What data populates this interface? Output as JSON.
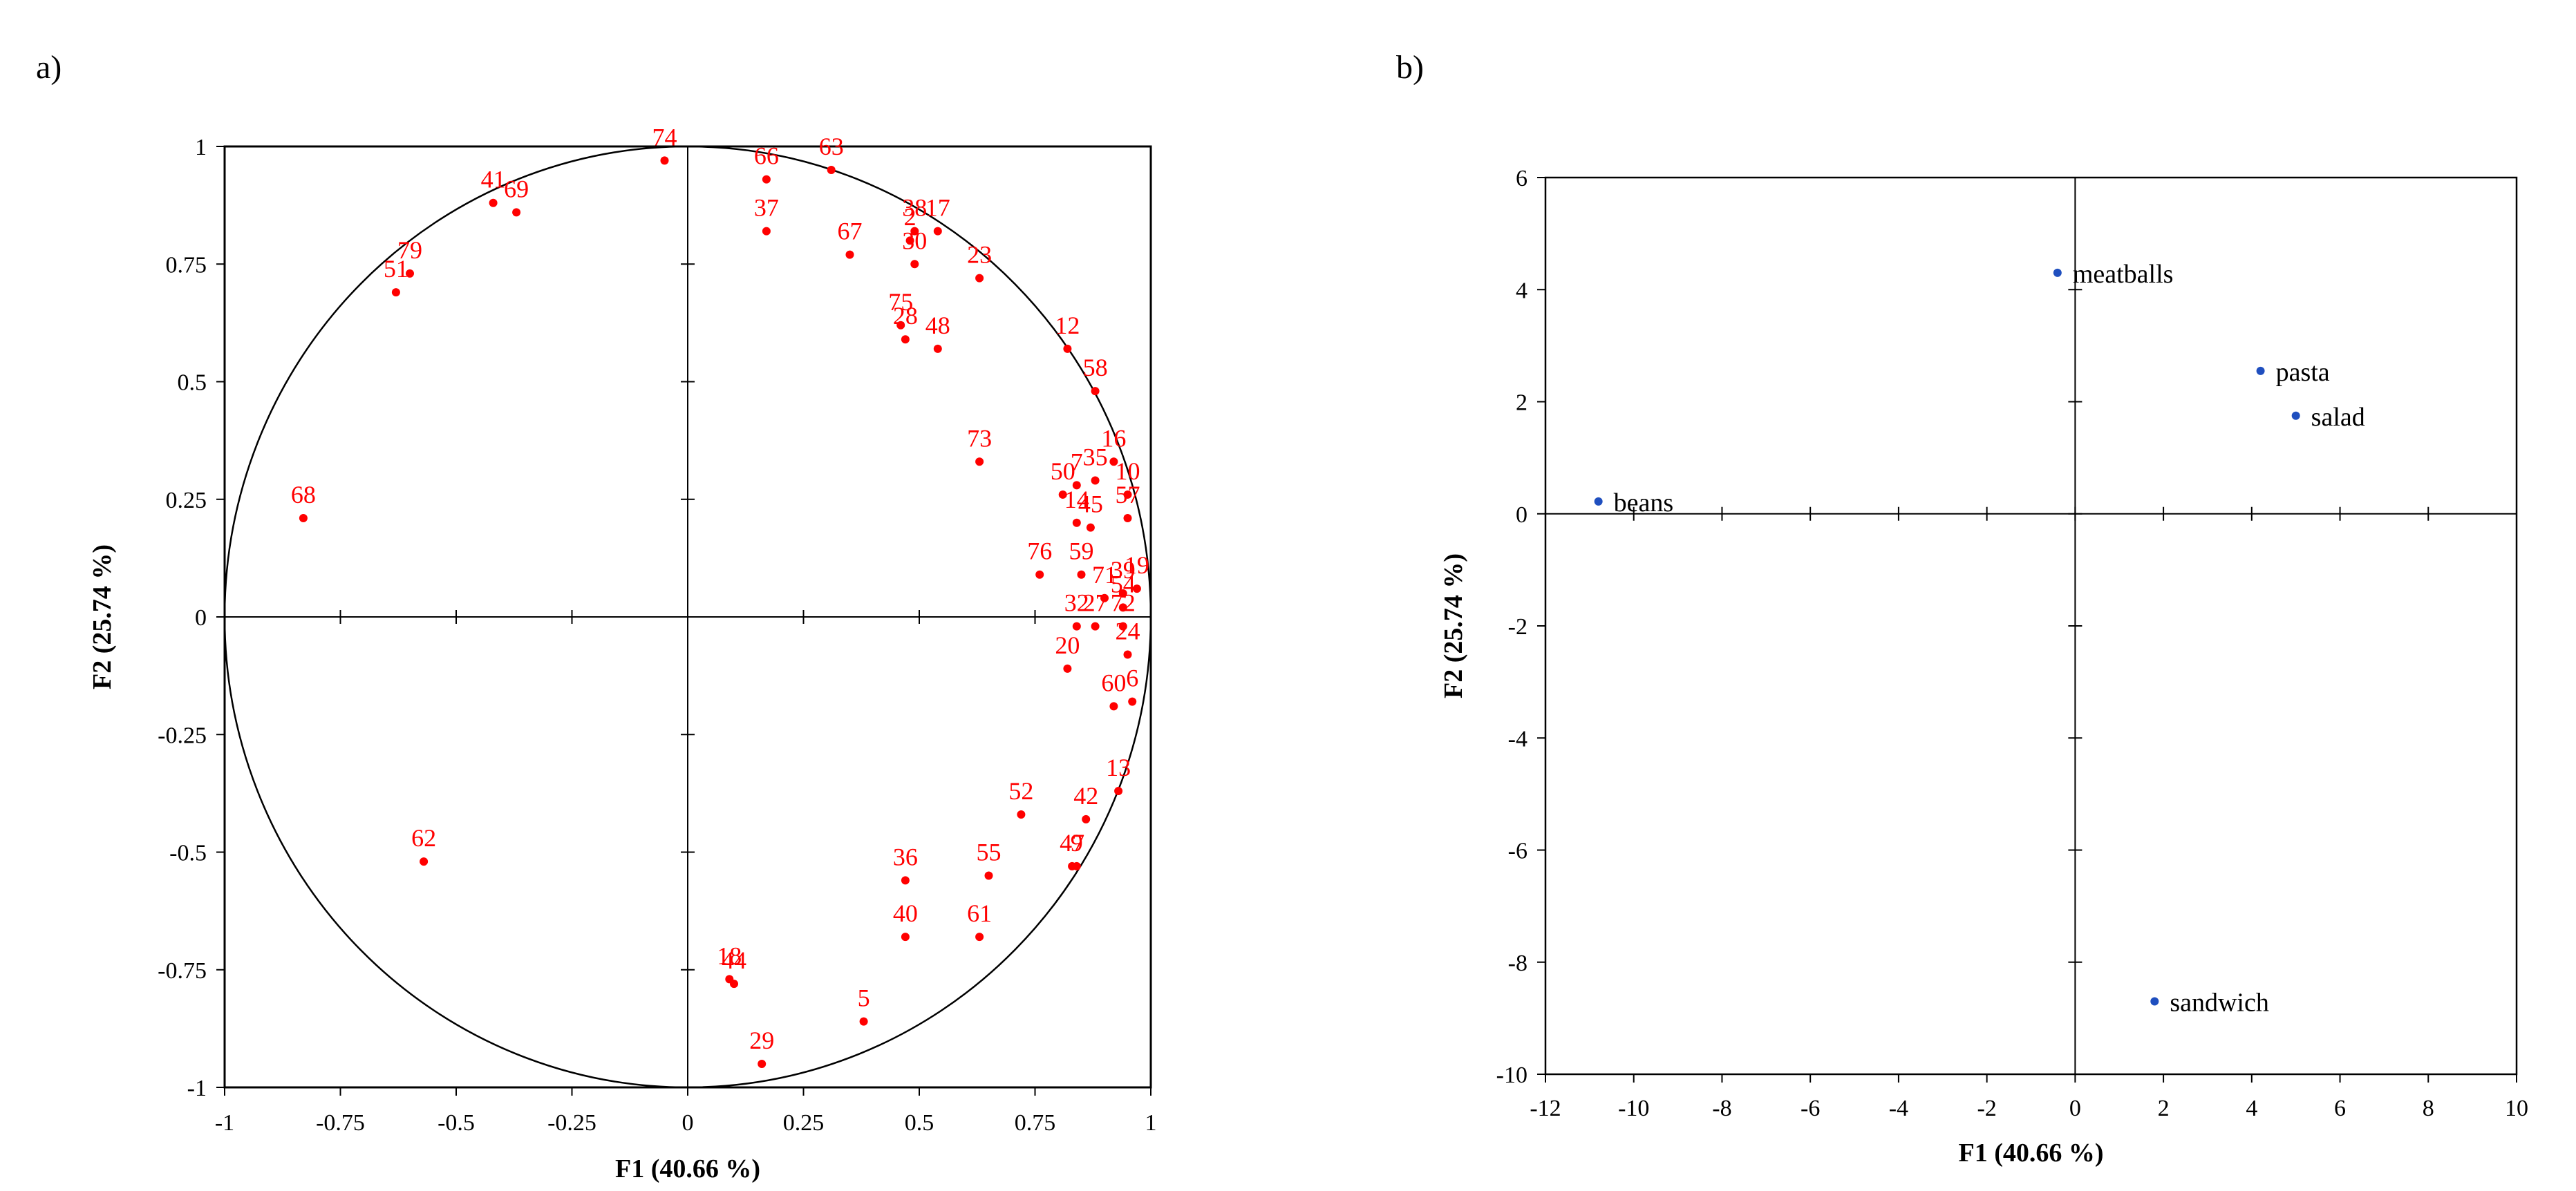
{
  "panel_labels": {
    "a": "a)",
    "b": "b)"
  },
  "chart_data": [
    {
      "type": "scatter",
      "title": "",
      "xlabel": "F1 (40.66 %)",
      "ylabel": "F2 (25.74 %)",
      "xlim": [
        -1,
        1
      ],
      "ylim": [
        -1,
        1
      ],
      "x_ticks": [
        -1,
        -0.75,
        -0.5,
        -0.25,
        0,
        0.25,
        0.5,
        0.75,
        1
      ],
      "x_tick_labels": [
        "-1",
        "-0.75",
        "-0.5",
        "-0.25",
        "0",
        "0.25",
        "0.5",
        "0.75",
        "1"
      ],
      "y_ticks": [
        -1,
        -0.75,
        -0.5,
        -0.25,
        0,
        0.25,
        0.5,
        0.75,
        1
      ],
      "y_tick_labels": [
        "-1",
        "-0.75",
        "-0.5",
        "-0.25",
        "0",
        "0.25",
        "0.5",
        "0.75",
        "1"
      ],
      "circle": true,
      "grid": false,
      "point_color": "#ff0000",
      "points": [
        {
          "label": "74",
          "x": -0.05,
          "y": 0.97
        },
        {
          "label": "66",
          "x": 0.17,
          "y": 0.93
        },
        {
          "label": "63",
          "x": 0.31,
          "y": 0.95
        },
        {
          "label": "41",
          "x": -0.42,
          "y": 0.88
        },
        {
          "label": "69",
          "x": -0.37,
          "y": 0.86
        },
        {
          "label": "37",
          "x": 0.17,
          "y": 0.82
        },
        {
          "label": "38",
          "x": 0.49,
          "y": 0.82
        },
        {
          "label": "17",
          "x": 0.54,
          "y": 0.82
        },
        {
          "label": "2",
          "x": 0.48,
          "y": 0.8
        },
        {
          "label": "30",
          "x": 0.49,
          "y": 0.75
        },
        {
          "label": "79",
          "x": -0.6,
          "y": 0.73
        },
        {
          "label": "67",
          "x": 0.35,
          "y": 0.77
        },
        {
          "label": "23",
          "x": 0.63,
          "y": 0.72
        },
        {
          "label": "51",
          "x": -0.63,
          "y": 0.69
        },
        {
          "label": "75",
          "x": 0.46,
          "y": 0.62
        },
        {
          "label": "28",
          "x": 0.47,
          "y": 0.59
        },
        {
          "label": "48",
          "x": 0.54,
          "y": 0.57
        },
        {
          "label": "12",
          "x": 0.82,
          "y": 0.57
        },
        {
          "label": "58",
          "x": 0.88,
          "y": 0.48
        },
        {
          "label": "73",
          "x": 0.63,
          "y": 0.33
        },
        {
          "label": "68",
          "x": -0.83,
          "y": 0.21
        },
        {
          "label": "50",
          "x": 0.81,
          "y": 0.26
        },
        {
          "label": "7",
          "x": 0.84,
          "y": 0.28
        },
        {
          "label": "35",
          "x": 0.88,
          "y": 0.29
        },
        {
          "label": "16",
          "x": 0.92,
          "y": 0.33
        },
        {
          "label": "10",
          "x": 0.95,
          "y": 0.26
        },
        {
          "label": "14",
          "x": 0.84,
          "y": 0.2
        },
        {
          "label": "45",
          "x": 0.87,
          "y": 0.19
        },
        {
          "label": "57",
          "x": 0.95,
          "y": 0.21
        },
        {
          "label": "59",
          "x": 0.85,
          "y": 0.09
        },
        {
          "label": "76",
          "x": 0.76,
          "y": 0.09
        },
        {
          "label": "39",
          "x": 0.94,
          "y": 0.05
        },
        {
          "label": "71",
          "x": 0.9,
          "y": 0.04
        },
        {
          "label": "19",
          "x": 0.97,
          "y": 0.06
        },
        {
          "label": "54",
          "x": 0.94,
          "y": 0.02
        },
        {
          "label": "32",
          "x": 0.84,
          "y": -0.02
        },
        {
          "label": "27",
          "x": 0.88,
          "y": -0.02
        },
        {
          "label": "72",
          "x": 0.94,
          "y": -0.02
        },
        {
          "label": "20",
          "x": 0.82,
          "y": -0.11
        },
        {
          "label": "24",
          "x": 0.95,
          "y": -0.08
        },
        {
          "label": "60",
          "x": 0.92,
          "y": -0.19
        },
        {
          "label": "6",
          "x": 0.96,
          "y": -0.18
        },
        {
          "label": "13",
          "x": 0.93,
          "y": -0.37
        },
        {
          "label": "42",
          "x": 0.86,
          "y": -0.43
        },
        {
          "label": "52",
          "x": 0.72,
          "y": -0.42
        },
        {
          "label": "9",
          "x": 0.84,
          "y": -0.53
        },
        {
          "label": "47",
          "x": 0.83,
          "y": -0.53
        },
        {
          "label": "36",
          "x": 0.47,
          "y": -0.56
        },
        {
          "label": "55",
          "x": 0.65,
          "y": -0.55
        },
        {
          "label": "62",
          "x": -0.57,
          "y": -0.52
        },
        {
          "label": "40",
          "x": 0.47,
          "y": -0.68
        },
        {
          "label": "61",
          "x": 0.63,
          "y": -0.68
        },
        {
          "label": "18",
          "x": 0.09,
          "y": -0.77
        },
        {
          "label": "44",
          "x": 0.1,
          "y": -0.78
        },
        {
          "label": "5",
          "x": 0.38,
          "y": -0.86
        },
        {
          "label": "29",
          "x": 0.16,
          "y": -0.95
        }
      ]
    },
    {
      "type": "scatter",
      "title": "",
      "xlabel": "F1 (40.66 %)",
      "ylabel": "F2 (25.74 %)",
      "xlim": [
        -12,
        10
      ],
      "ylim": [
        -10,
        6
      ],
      "x_ticks": [
        -12,
        -10,
        -8,
        -6,
        -4,
        -2,
        0,
        2,
        4,
        6,
        8,
        10
      ],
      "x_tick_labels": [
        "-12",
        "-10",
        "-8",
        "-6",
        "-4",
        "-2",
        "0",
        "2",
        "4",
        "6",
        "8",
        "10"
      ],
      "y_ticks": [
        -10,
        -8,
        -6,
        -4,
        -2,
        0,
        2,
        4,
        6
      ],
      "y_tick_labels": [
        "-10",
        "-8",
        "-6",
        "-4",
        "-2",
        "0",
        "2",
        "4",
        "6"
      ],
      "grid": false,
      "point_color": "#1f4fbf",
      "points": [
        {
          "label": "meatballs",
          "x": -0.4,
          "y": 4.3
        },
        {
          "label": "pasta",
          "x": 4.2,
          "y": 2.55
        },
        {
          "label": "salad",
          "x": 5.0,
          "y": 1.75
        },
        {
          "label": "beans",
          "x": -10.8,
          "y": 0.22
        },
        {
          "label": "sandwich",
          "x": 1.8,
          "y": -8.7
        }
      ]
    }
  ]
}
